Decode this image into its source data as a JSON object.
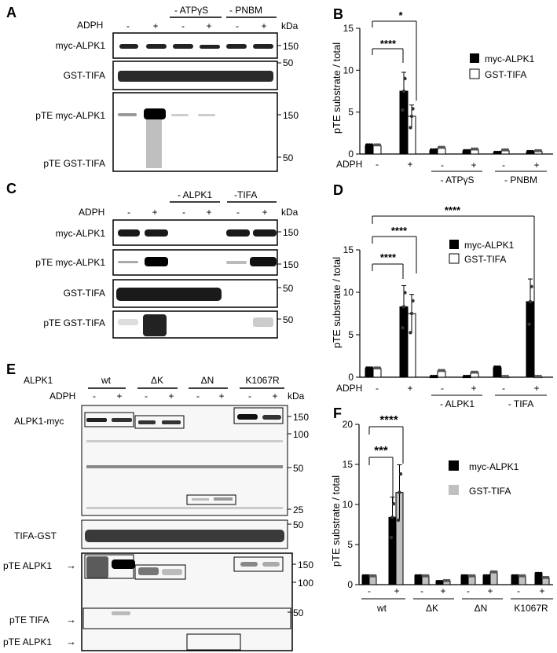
{
  "panel_a": {
    "letter": "A",
    "adph_label": "ADPH",
    "cond_atp": "- ATPγS",
    "cond_pnbm": "- PNBM",
    "signs": [
      "-",
      "+",
      "-",
      "+",
      "-",
      "+"
    ],
    "kda": "kDa",
    "rows": [
      "myc-ALPK1",
      "GST-TIFA",
      "pTE myc-ALPK1",
      "pTE GST-TIFA"
    ],
    "markers": [
      "150",
      "50",
      "150",
      "50"
    ]
  },
  "panel_b": {
    "letter": "B",
    "ylabel": "pTE substrate / total",
    "yticks": [
      "15",
      "10",
      "5",
      "0"
    ],
    "sig1": "****",
    "sig2": "*",
    "legend1": "myc-ALPK1",
    "legend2": "GST-TIFA",
    "adph": "ADPH",
    "signs": [
      "-",
      "+",
      "-",
      "+",
      "-",
      "+"
    ],
    "groups": [
      "- ATPγS",
      "- PNBM"
    ]
  },
  "panel_c": {
    "letter": "C",
    "adph_label": "ADPH",
    "cond_alpk1": "- ALPK1",
    "cond_tifa": "-TIFA",
    "signs": [
      "-",
      "+",
      "-",
      "+",
      "-",
      "+"
    ],
    "kda": "kDa",
    "rows": [
      "myc-ALPK1",
      "pTE myc-ALPK1",
      "GST-TIFA",
      "pTE GST-TIFA"
    ],
    "markers": [
      "150",
      "150",
      "50",
      "50"
    ]
  },
  "panel_d": {
    "letter": "D",
    "ylabel": "pTE substrate / total",
    "yticks": [
      "15",
      "10",
      "5",
      "0"
    ],
    "sig_long": "****",
    "sig_mid": "****",
    "sig_short": "****",
    "legend1": "myc-ALPK1",
    "legend2": "GST-TIFA",
    "adph": "ADPH",
    "signs": [
      "-",
      "+",
      "-",
      "+",
      "-",
      "+"
    ],
    "groups": [
      "- ALPK1",
      "- TIFA"
    ]
  },
  "panel_e": {
    "letter": "E",
    "alpk1_label": "ALPK1",
    "adph_label": "ADPH",
    "groups": [
      "wt",
      "ΔK",
      "ΔN",
      "K1067R"
    ],
    "signs": [
      "-",
      "+",
      "-",
      "+",
      "-",
      "+",
      "-",
      "+"
    ],
    "kda": "kDa",
    "row_myc": "ALPK1-myc",
    "row_tifa": "TIFA-GST",
    "row_pte_alpk1": "pTE ALPK1",
    "row_pte_tifa": "pTE TIFA",
    "row_pte_alpk1_b": "pTE ALPK1",
    "markers_top": [
      "150",
      "100",
      "50",
      "25"
    ],
    "marker_tifa": "50",
    "markers_bottom": [
      "150",
      "100",
      "50"
    ]
  },
  "panel_f": {
    "letter": "F",
    "ylabel": "pTE substrate / total",
    "yticks": [
      "20",
      "15",
      "10",
      "5",
      "0"
    ],
    "sig1": "****",
    "sig2": "***",
    "legend1": "myc-ALPK1",
    "legend2": "GST-TIFA",
    "signs": [
      "-",
      "+",
      "-",
      "+",
      "-",
      "+",
      "-",
      "+"
    ],
    "groups": [
      "wt",
      "ΔK",
      "ΔN",
      "K1067R"
    ]
  },
  "chart_data": [
    {
      "panel": "B",
      "type": "bar",
      "ylabel": "pTE substrate / total",
      "ylim": [
        0,
        15
      ],
      "categories": [
        "-",
        "+",
        "- ATPγS -",
        "- ATPγS +",
        "- PNBM -",
        "- PNBM +"
      ],
      "series": [
        {
          "name": "myc-ALPK1",
          "values": [
            1.0,
            7.5,
            0.4,
            0.3,
            0.1,
            0.2
          ],
          "color": "#000000"
        },
        {
          "name": "GST-TIFA",
          "values": [
            1.0,
            4.5,
            0.7,
            0.5,
            0.4,
            0.3
          ],
          "color": "#ffffff"
        }
      ]
    },
    {
      "panel": "D",
      "type": "bar",
      "ylabel": "pTE substrate / total",
      "ylim": [
        0,
        15
      ],
      "categories": [
        "-",
        "+",
        "- ALPK1 -",
        "- ALPK1 +",
        "- TIFA -",
        "- TIFA +"
      ],
      "series": [
        {
          "name": "myc-ALPK1",
          "values": [
            1.0,
            8.3,
            0.0,
            0.0,
            1.1,
            8.9
          ],
          "color": "#000000"
        },
        {
          "name": "GST-TIFA",
          "values": [
            1.0,
            7.5,
            0.7,
            0.5,
            0.0,
            0.0
          ],
          "color": "#ffffff"
        }
      ]
    },
    {
      "panel": "F",
      "type": "bar",
      "ylabel": "pTE substrate / total",
      "ylim": [
        0,
        20
      ],
      "categories": [
        "wt -",
        "wt +",
        "ΔK -",
        "ΔK +",
        "ΔN -",
        "ΔN +",
        "K1067R -",
        "K1067R +"
      ],
      "series": [
        {
          "name": "myc-ALPK1",
          "values": [
            1.0,
            8.4,
            1.0,
            0.3,
            1.0,
            1.0,
            1.0,
            1.3
          ],
          "color": "#000000"
        },
        {
          "name": "GST-TIFA",
          "values": [
            1.0,
            11.5,
            1.0,
            0.4,
            1.0,
            1.5,
            1.0,
            0.8
          ],
          "color": "#c0c0c0"
        }
      ]
    }
  ]
}
